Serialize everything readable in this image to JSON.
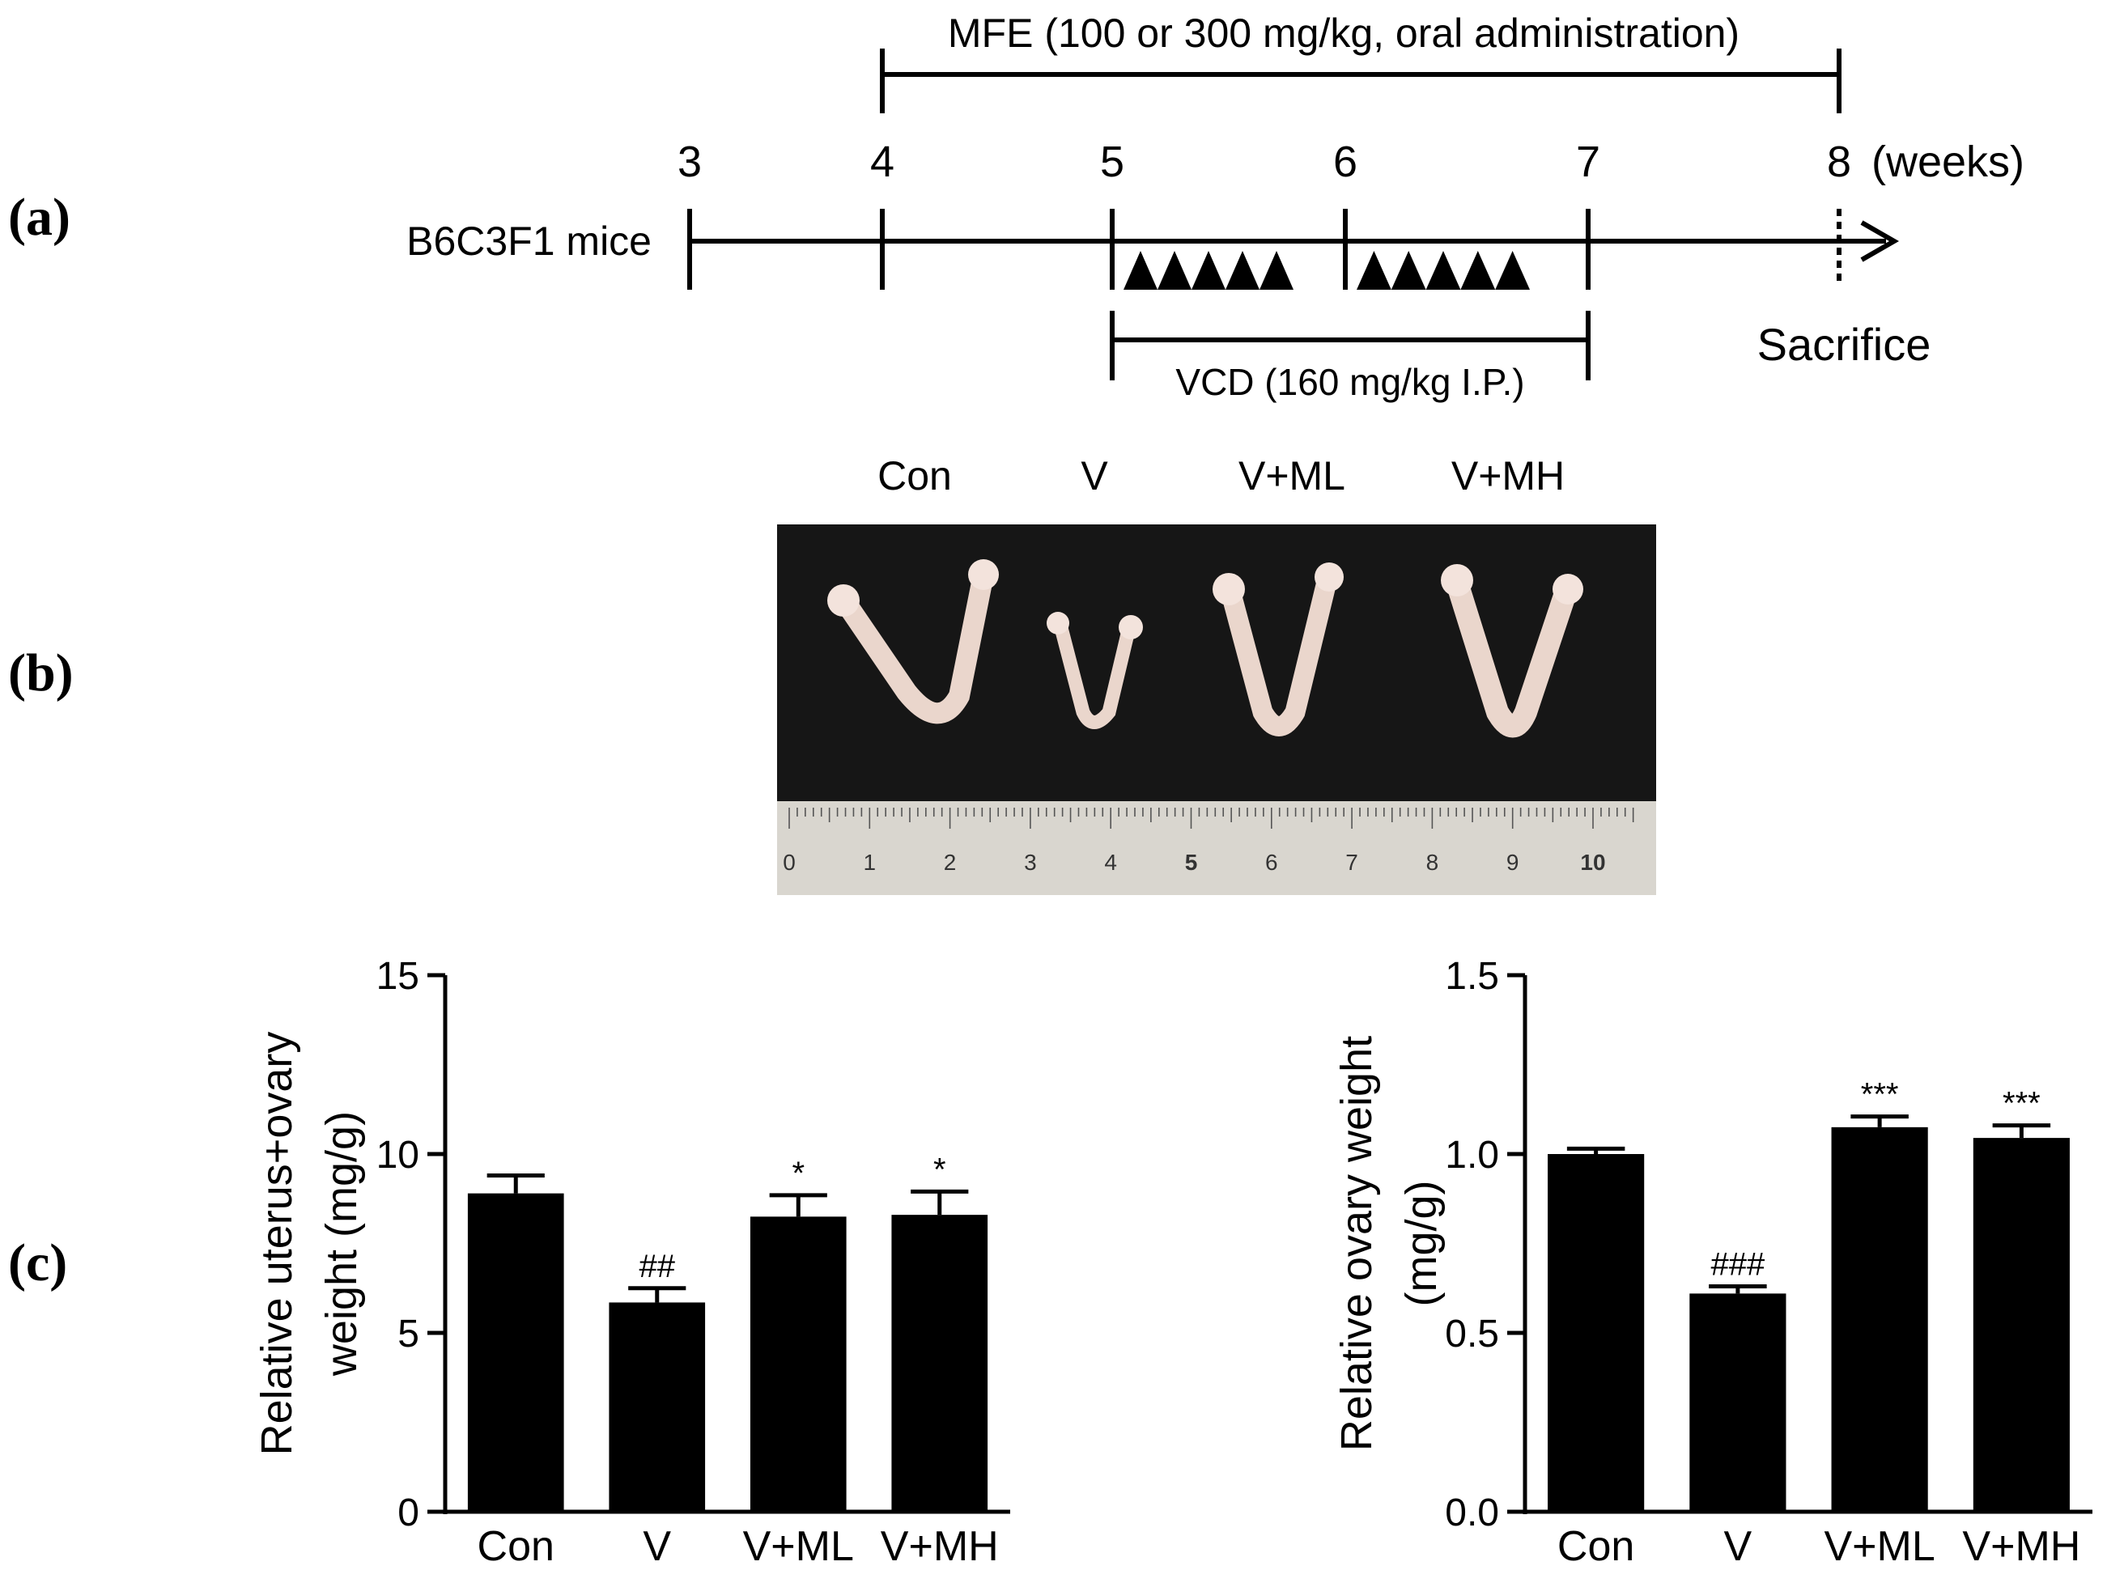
{
  "panel_labels": {
    "a": "(a)",
    "b": "(b)",
    "c": "(c)"
  },
  "timeline": {
    "subject_label": "B6C3F1 mice",
    "weeks": [
      "3",
      "4",
      "5",
      "6",
      "7",
      "8"
    ],
    "unit_label": "(weeks)",
    "mfe_label": "MFE (100 or 300 mg/kg,  oral administration)",
    "vcd_label": "VCD (160 mg/kg I.P.)",
    "sacrifice_label": "Sacrifice",
    "injections_per_week": 5
  },
  "photo": {
    "group_labels": [
      "Con",
      "V",
      "V+ML",
      "V+MH"
    ],
    "ruler_numbers": [
      "0",
      "1",
      "2",
      "3",
      "4",
      "5",
      "6",
      "7",
      "8",
      "9",
      "10"
    ],
    "colors": {
      "background": "#161616",
      "ruler": "#d9d6cf",
      "tissue": "#ead6cc"
    }
  },
  "chart_data": [
    {
      "type": "bar",
      "categories": [
        "Con",
        "V",
        "V+ML",
        "V+MH"
      ],
      "values": [
        8.9,
        5.85,
        8.25,
        8.3
      ],
      "errors": [
        0.5,
        0.4,
        0.6,
        0.65
      ],
      "annotations": [
        "",
        "##",
        "*",
        "*"
      ],
      "ylabel": [
        "Relative uterus+ovary",
        "weight (mg/g)"
      ],
      "ylim": [
        0,
        15
      ],
      "yticks": [
        0,
        5,
        10,
        15
      ],
      "ytick_labels": [
        "0",
        "5",
        "10",
        "15"
      ],
      "bar_color": "#000000"
    },
    {
      "type": "bar",
      "categories": [
        "Con",
        "V",
        "V+ML",
        "V+MH"
      ],
      "values": [
        1.0,
        0.61,
        1.075,
        1.045
      ],
      "errors": [
        0.015,
        0.02,
        0.03,
        0.035
      ],
      "annotations": [
        "",
        "###",
        "***",
        "***"
      ],
      "ylabel": [
        "Relative ovary weight",
        "(mg/g)"
      ],
      "ylim": [
        0,
        1.5
      ],
      "yticks": [
        0,
        0.5,
        1.0,
        1.5
      ],
      "ytick_labels": [
        "0.0",
        "0.5",
        "1.0",
        "1.5"
      ],
      "bar_color": "#000000"
    }
  ]
}
